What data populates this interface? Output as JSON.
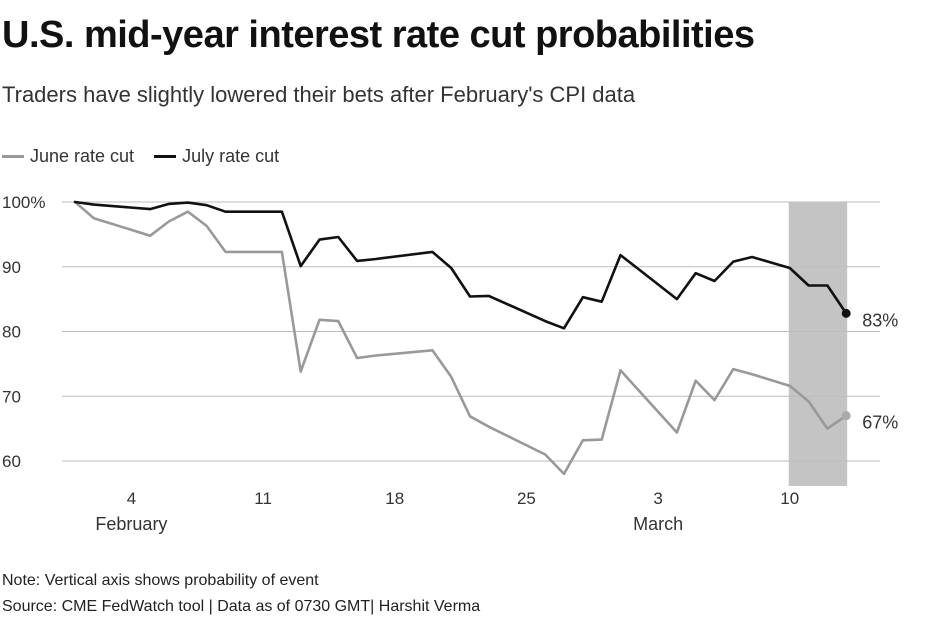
{
  "title": "U.S. mid-year interest rate cut probabilities",
  "subtitle": "Traders have slightly lowered their bets after February's CPI data",
  "legend": [
    {
      "label": "June rate cut",
      "color": "#999999"
    },
    {
      "label": "July rate cut",
      "color": "#111111"
    }
  ],
  "note": "Note: Vertical axis shows probability of event",
  "source": "Source: CME FedWatch tool | Data as of 0730 GMT| Harshit Verma",
  "chart_data": {
    "type": "line",
    "title": "U.S. mid-year interest rate cut probabilities",
    "ylabel": "",
    "xlabel": "",
    "ylim": [
      58,
      100
    ],
    "xlim": [
      1,
      43
    ],
    "y_ticks": [
      {
        "value": 100,
        "label": "100%"
      },
      {
        "value": 90,
        "label": "90"
      },
      {
        "value": 80,
        "label": "80"
      },
      {
        "value": 70,
        "label": "70"
      },
      {
        "value": 60,
        "label": "60"
      }
    ],
    "x_ticks": [
      {
        "value": 4,
        "label": "4",
        "sub": "February"
      },
      {
        "value": 11,
        "label": "11",
        "sub": ""
      },
      {
        "value": 18,
        "label": "18",
        "sub": ""
      },
      {
        "value": 25,
        "label": "25",
        "sub": ""
      },
      {
        "value": 32,
        "label": "3",
        "sub": "March"
      },
      {
        "value": 39,
        "label": "10",
        "sub": ""
      }
    ],
    "highlight_range": [
      39.0,
      42.0
    ],
    "series": [
      {
        "name": "June rate cut",
        "color": "#999999",
        "end_label": "67%",
        "points": [
          [
            1,
            100
          ],
          [
            2,
            97.5
          ],
          [
            5,
            94.8
          ],
          [
            6,
            97
          ],
          [
            7,
            98.5
          ],
          [
            8,
            96.3
          ],
          [
            9,
            92.3
          ],
          [
            12,
            92.3
          ],
          [
            13,
            73.8
          ],
          [
            14,
            81.8
          ],
          [
            15,
            81.6
          ],
          [
            16,
            75.9
          ],
          [
            17,
            76.3
          ],
          [
            20,
            77.1
          ],
          [
            21,
            73
          ],
          [
            22,
            66.9
          ],
          [
            23,
            65.3
          ],
          [
            26,
            61
          ],
          [
            27,
            58
          ],
          [
            28,
            63.2
          ],
          [
            29,
            63.3
          ],
          [
            30,
            74
          ],
          [
            33,
            64.4
          ],
          [
            34,
            72.4
          ],
          [
            35,
            69.4
          ],
          [
            36,
            74.2
          ],
          [
            37,
            73.4
          ],
          [
            39,
            71.6
          ],
          [
            40,
            69.2
          ],
          [
            41,
            65
          ],
          [
            42,
            67
          ]
        ]
      },
      {
        "name": "July rate cut",
        "color": "#111111",
        "end_label": "83%",
        "points": [
          [
            1,
            100
          ],
          [
            2,
            99.6
          ],
          [
            5,
            98.9
          ],
          [
            6,
            99.7
          ],
          [
            7,
            99.9
          ],
          [
            8,
            99.5
          ],
          [
            9,
            98.5
          ],
          [
            12,
            98.5
          ],
          [
            13,
            90.1
          ],
          [
            14,
            94.2
          ],
          [
            15,
            94.6
          ],
          [
            16,
            90.9
          ],
          [
            17,
            91.2
          ],
          [
            20,
            92.3
          ],
          [
            21,
            89.8
          ],
          [
            22,
            85.4
          ],
          [
            23,
            85.5
          ],
          [
            26,
            81.6
          ],
          [
            27,
            80.5
          ],
          [
            28,
            85.3
          ],
          [
            29,
            84.6
          ],
          [
            30,
            91.8
          ],
          [
            33,
            85
          ],
          [
            34,
            89
          ],
          [
            35,
            87.8
          ],
          [
            36,
            90.8
          ],
          [
            37,
            91.5
          ],
          [
            39,
            89.8
          ],
          [
            40,
            87.1
          ],
          [
            41,
            87.1
          ],
          [
            42,
            82.8
          ]
        ]
      }
    ]
  }
}
